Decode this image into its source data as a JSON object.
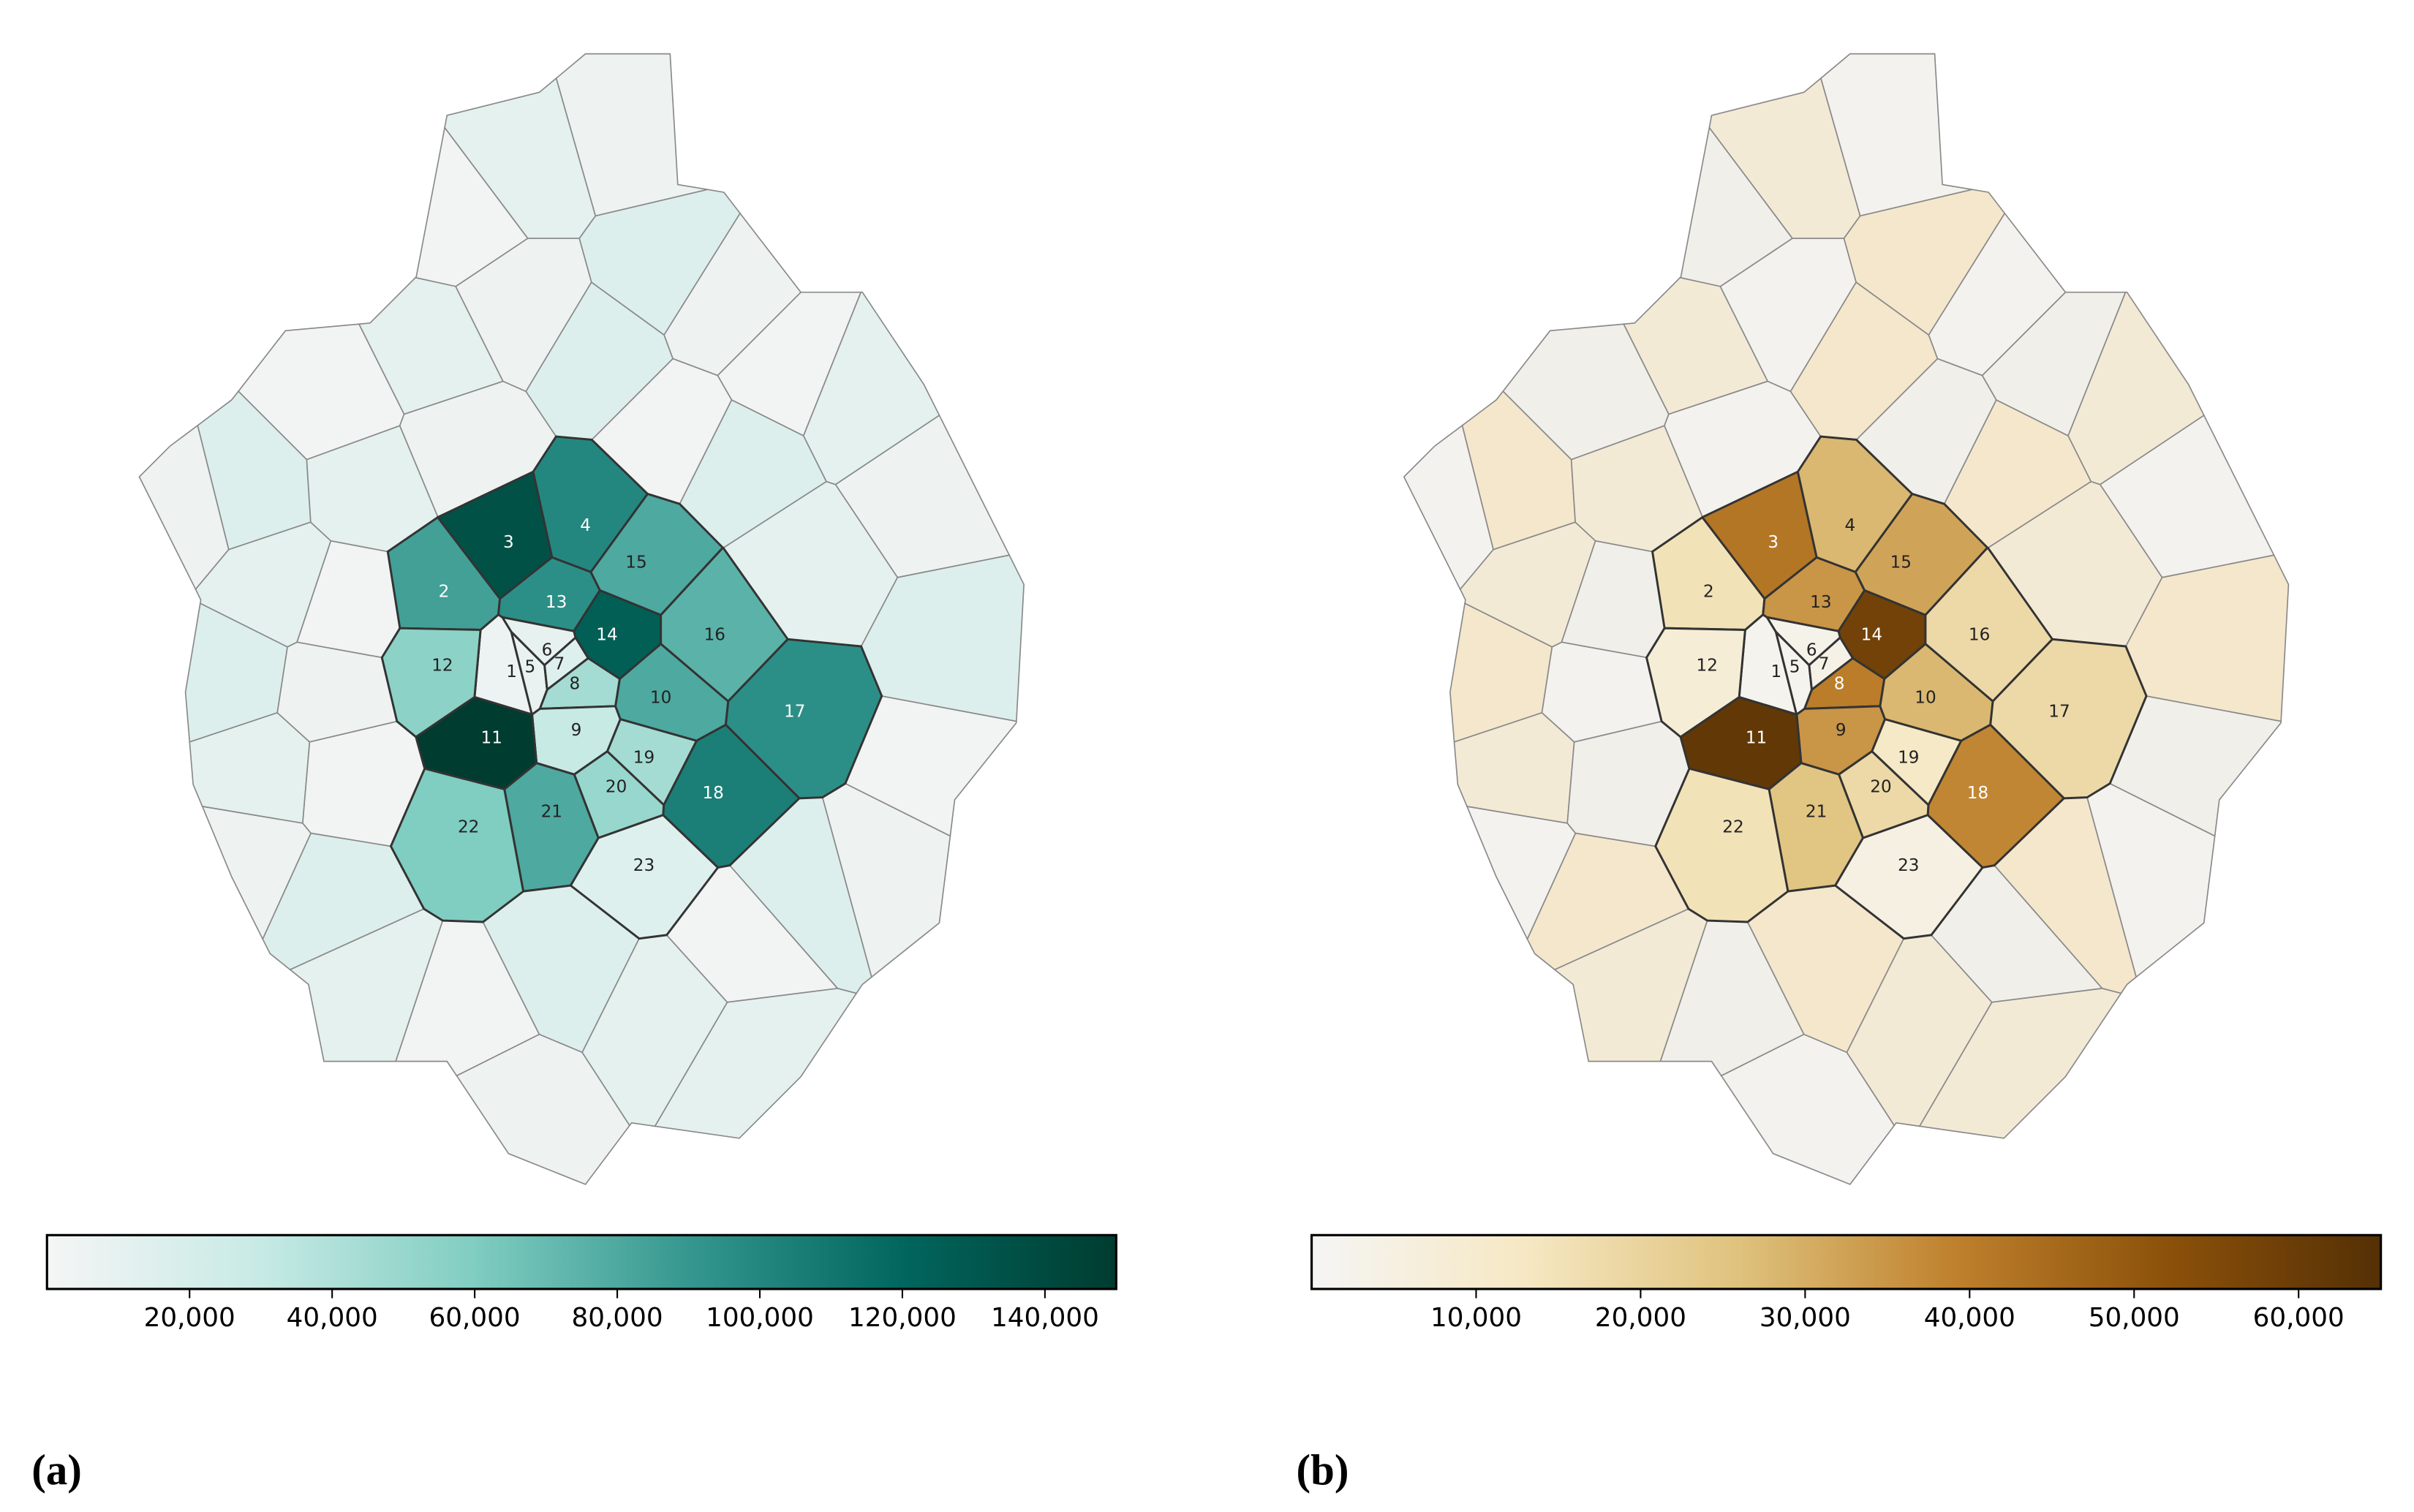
{
  "chart_data": [
    {
      "type": "choropleth",
      "panel_label": "(a)",
      "colormap": [
        "#f5f5f5",
        "#c7eae5",
        "#80cdc1",
        "#35978f",
        "#01665e",
        "#003c30"
      ],
      "colorbar_lim": [
        0,
        150000
      ],
      "colorbar_ticks": [
        {
          "value": 20000,
          "label": "20,000"
        },
        {
          "value": 40000,
          "label": "40,000"
        },
        {
          "value": 60000,
          "label": "60,000"
        },
        {
          "value": 80000,
          "label": "80,000"
        },
        {
          "value": 100000,
          "label": "100,000"
        },
        {
          "value": 120000,
          "label": "120,000"
        },
        {
          "value": 140000,
          "label": "140,000"
        }
      ],
      "categories": [
        "1",
        "2",
        "3",
        "4",
        "5",
        "6",
        "7",
        "8",
        "9",
        "10",
        "11",
        "12",
        "13",
        "14",
        "15",
        "16",
        "17",
        "18",
        "19",
        "20",
        "21",
        "22",
        "23"
      ],
      "values": [
        5000,
        85000,
        135000,
        100000,
        8000,
        10000,
        15000,
        45000,
        30000,
        80000,
        150000,
        55000,
        95000,
        125000,
        80000,
        75000,
        95000,
        105000,
        45000,
        50000,
        80000,
        60000,
        15000
      ]
    },
    {
      "type": "choropleth",
      "panel_label": "(b)",
      "colormap": [
        "#f5f5f5",
        "#f6e8c3",
        "#dfc27d",
        "#bf812d",
        "#8c510a",
        "#543005"
      ],
      "colorbar_lim": [
        0,
        65000
      ],
      "colorbar_ticks": [
        {
          "value": 10000,
          "label": "10,000"
        },
        {
          "value": 20000,
          "label": "20,000"
        },
        {
          "value": 30000,
          "label": "30,000"
        },
        {
          "value": 40000,
          "label": "40,000"
        },
        {
          "value": 50000,
          "label": "50,000"
        },
        {
          "value": 60000,
          "label": "60,000"
        }
      ],
      "categories": [
        "1",
        "2",
        "3",
        "4",
        "5",
        "6",
        "7",
        "8",
        "9",
        "10",
        "11",
        "12",
        "13",
        "14",
        "15",
        "16",
        "17",
        "18",
        "19",
        "20",
        "21",
        "22",
        "23"
      ],
      "values": [
        2000,
        15000,
        42000,
        28000,
        2000,
        3000,
        4000,
        40000,
        35000,
        28000,
        62000,
        8000,
        35000,
        58000,
        32000,
        18000,
        18000,
        38000,
        12000,
        18000,
        25000,
        15000,
        5000
      ]
    }
  ]
}
